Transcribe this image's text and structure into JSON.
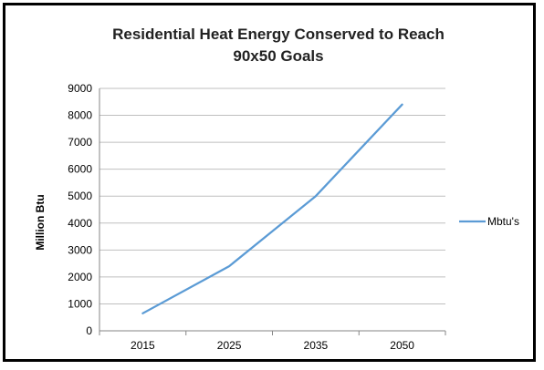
{
  "chart_data": {
    "type": "line",
    "title": "Residential Heat Energy  Conserved to Reach",
    "subtitle": "90x50 Goals",
    "xlabel": "",
    "ylabel": "Million Btu",
    "categories": [
      "2015",
      "2025",
      "2035",
      "2050"
    ],
    "series": [
      {
        "name": "Mbtu's",
        "values": [
          650,
          2400,
          5000,
          8400
        ],
        "color": "#5b9bd5"
      }
    ],
    "ylim": [
      0,
      9000
    ],
    "yticks": [
      "0",
      "1000",
      "2000",
      "3000",
      "4000",
      "5000",
      "6000",
      "7000",
      "8000",
      "9000"
    ],
    "grid": true,
    "legend_position": "right",
    "colors": {
      "gridline": "#bfbfbf",
      "axis": "#868686",
      "frame": "#000000"
    }
  }
}
